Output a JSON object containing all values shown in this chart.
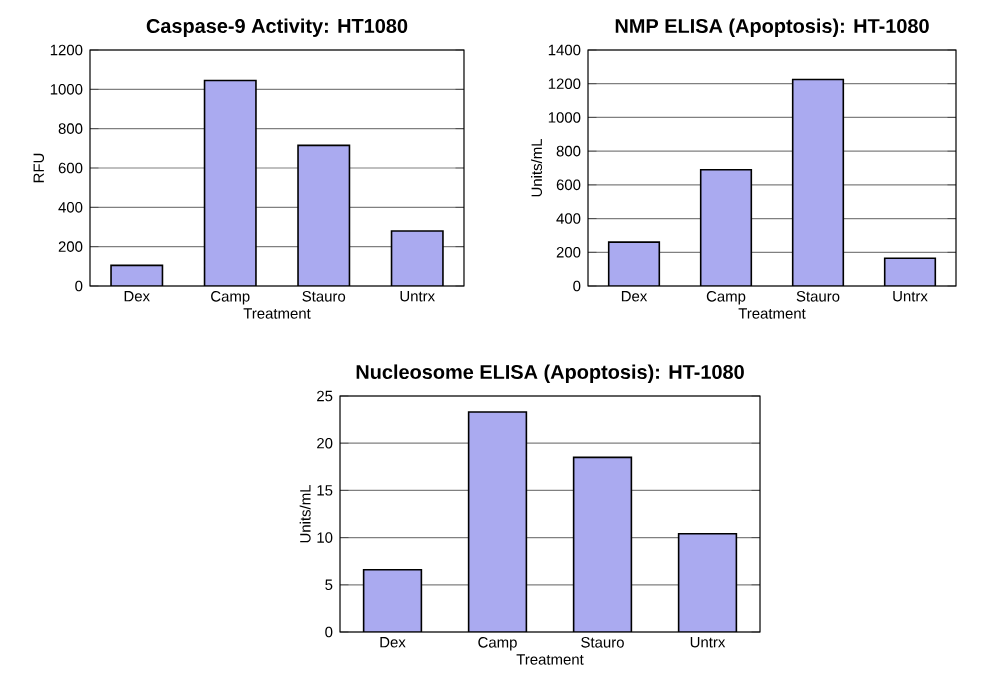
{
  "chart_data": [
    {
      "type": "bar",
      "title": "Caspase-9 Activity: HT1080",
      "xlabel": "Treatment",
      "ylabel": "RFU",
      "categories": [
        "Dex",
        "Camp",
        "Stauro",
        "Untrx"
      ],
      "values": [
        105,
        1045,
        715,
        280
      ],
      "color": "#aaaaf0",
      "ylim": [
        0,
        1200
      ],
      "yticks": [
        0,
        200,
        400,
        600,
        800,
        1000,
        1200
      ],
      "grid": "y"
    },
    {
      "type": "bar",
      "title": "NMP ELISA (Apoptosis): HT-1080",
      "xlabel": "Treatment",
      "ylabel": "Units/mL",
      "categories": [
        "Dex",
        "Camp",
        "Stauro",
        "Untrx"
      ],
      "values": [
        260,
        690,
        1225,
        165
      ],
      "color": "#aaaaf0",
      "ylim": [
        0,
        1400
      ],
      "yticks": [
        0,
        200,
        400,
        600,
        800,
        1000,
        1200,
        1400
      ],
      "grid": "y"
    },
    {
      "type": "bar",
      "title": "Nucleosome ELISA (Apoptosis): HT-1080",
      "xlabel": "Treatment",
      "ylabel": "Units/mL",
      "categories": [
        "Dex",
        "Camp",
        "Stauro",
        "Untrx"
      ],
      "values": [
        6.6,
        23.3,
        18.5,
        10.4
      ],
      "color": "#aaaaf0",
      "ylim": [
        0,
        25
      ],
      "yticks": [
        0,
        5,
        10,
        15,
        20,
        25
      ],
      "grid": "y"
    }
  ]
}
